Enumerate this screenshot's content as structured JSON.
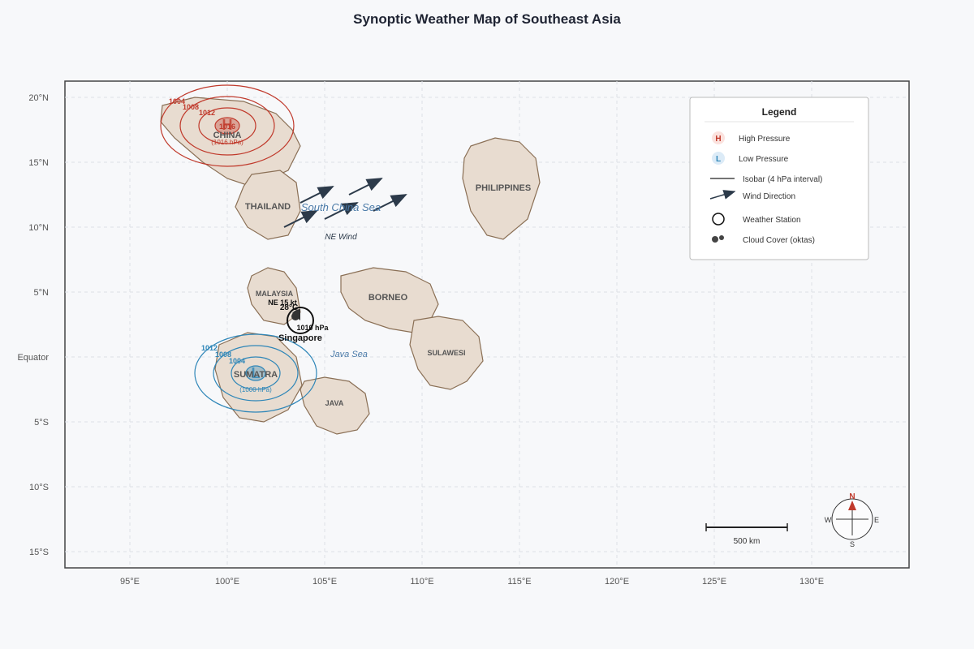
{
  "title": "Synoptic Weather Map of Southeast Asia",
  "axes": {
    "lat_labels": [
      "20°N",
      "15°N",
      "10°N",
      "5°N",
      "Equator",
      "5°S",
      "10°S",
      "15°S"
    ],
    "lon_labels": [
      "95°E",
      "100°E",
      "105°E",
      "110°E",
      "115°E",
      "120°E",
      "125°E",
      "130°E"
    ]
  },
  "regions": {
    "china": "CHINA",
    "thailand": "THAILAND",
    "philippines": "PHILIPPINES",
    "malaysia": "MALAYSIA",
    "borneo": "BORNEO",
    "sulawesi": "SULAWESI",
    "sumatra": "SUMATRA",
    "java": "JAVA"
  },
  "seas": {
    "south_china_sea": "South China Sea",
    "java_sea": "Java Sea"
  },
  "wind_note": "NE Wind",
  "high_pressure": {
    "symbol": "H",
    "center_label": "(1016 hPa)",
    "isobars": [
      "1016",
      "1012",
      "1008",
      "1004"
    ]
  },
  "low_pressure": {
    "symbol": "L",
    "center_label": "(1000 hPa)",
    "isobars": [
      "1004",
      "1008",
      "1012"
    ]
  },
  "station": {
    "name": "Singapore",
    "temperature": "28°C",
    "pressure": "1010 hPa",
    "wind": "NE 15 kt"
  },
  "legend": {
    "title": "Legend",
    "items": {
      "high": "High Pressure",
      "low": "Low Pressure",
      "isobar": "Isobar (4 hPa interval)",
      "wind": "Wind Direction",
      "station": "Weather Station",
      "cloud": "Cloud Cover (oktas)"
    }
  },
  "scale": {
    "label": "500 km"
  },
  "compass": {
    "n": "N",
    "s": "S",
    "e": "E",
    "w": "W"
  },
  "colors": {
    "high": "#c0392b",
    "low": "#2e86b8",
    "land": "#e8dcd0",
    "coast": "#8a6f55"
  }
}
